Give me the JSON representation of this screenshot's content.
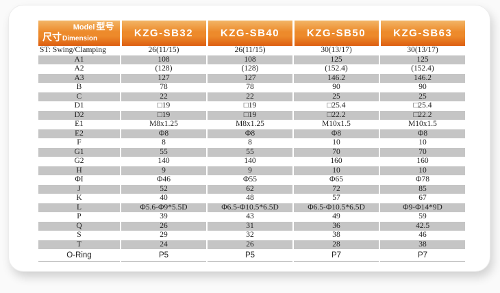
{
  "page": {
    "background": "#fafafa",
    "card_background": "#ffffff"
  },
  "colors": {
    "page-bg": "#fafafa",
    "card-bg": "#ffffff",
    "hdr-top": "#f2b566",
    "hdr-mid": "#ed8a2b",
    "hdr-bot": "#dd5e10",
    "hdr-text": "#ffffff",
    "stripe": "#c5c5c5",
    "body-text": "#222222",
    "rule": "#9a9a9a"
  },
  "table": {
    "corner": {
      "model_label": "Model",
      "model_label_cn": "型号",
      "dimension_label_cn": "尺寸",
      "dimension_label": "Dimension"
    },
    "columns": [
      "KZG-SB32",
      "KZG-SB40",
      "KZG-SB50",
      "KZG-SB63"
    ],
    "rows": [
      {
        "label": "ST: Swing/Clamping",
        "align": "left",
        "values": [
          "26(11/15)",
          "26(11/15)",
          "30(13/17)",
          "30(13/17)"
        ]
      },
      {
        "label": "A1",
        "values": [
          "108",
          "108",
          "125",
          "125"
        ]
      },
      {
        "label": "A2",
        "values": [
          "(128)",
          "(128)",
          "(152.4)",
          "(152.4)"
        ]
      },
      {
        "label": "A3",
        "values": [
          "127",
          "127",
          "146.2",
          "146.2"
        ]
      },
      {
        "label": "B",
        "values": [
          "78",
          "78",
          "90",
          "90"
        ]
      },
      {
        "label": "C",
        "values": [
          "22",
          "22",
          "25",
          "25"
        ]
      },
      {
        "label": "D1",
        "values": [
          "□19",
          "□19",
          "□25.4",
          "□25.4"
        ]
      },
      {
        "label": "D2",
        "values": [
          "□19",
          "□19",
          "□22.2",
          "□22.2"
        ]
      },
      {
        "label": "E1",
        "values": [
          "M8x1.25",
          "M8x1.25",
          "M10x1.5",
          "M10x1.5"
        ]
      },
      {
        "label": "E2",
        "values": [
          "Φ8",
          "Φ8",
          "Φ8",
          "Φ8"
        ]
      },
      {
        "label": "F",
        "values": [
          "8",
          "8",
          "10",
          "10"
        ]
      },
      {
        "label": "G1",
        "values": [
          "55",
          "55",
          "70",
          "70"
        ]
      },
      {
        "label": "G2",
        "values": [
          "140",
          "140",
          "160",
          "160"
        ]
      },
      {
        "label": "H",
        "values": [
          "9",
          "9",
          "10",
          "10"
        ]
      },
      {
        "label": "ΦI",
        "values": [
          "Φ46",
          "Φ55",
          "Φ65",
          "Φ78"
        ]
      },
      {
        "label": "J",
        "values": [
          "52",
          "62",
          "72",
          "85"
        ]
      },
      {
        "label": "K",
        "values": [
          "40",
          "48",
          "57",
          "67"
        ]
      },
      {
        "label": "L",
        "values": [
          "Φ5.6-Φ9*5.5D",
          "Φ6.5-Φ10.5*6.5D",
          "Φ6.5-Φ10.5*6.5D",
          "Φ9-Φ14*9D"
        ]
      },
      {
        "label": "P",
        "values": [
          "39",
          "43",
          "49",
          "59"
        ]
      },
      {
        "label": "Q",
        "values": [
          "26",
          "31",
          "36",
          "42.5"
        ]
      },
      {
        "label": "S",
        "values": [
          "29",
          "32",
          "38",
          "46"
        ]
      },
      {
        "label": "T",
        "values": [
          "24",
          "26",
          "28",
          "38"
        ]
      },
      {
        "label": "O-Ring",
        "variant": "oring",
        "values": [
          "P5",
          "P5",
          "P7",
          "P7"
        ]
      }
    ]
  }
}
